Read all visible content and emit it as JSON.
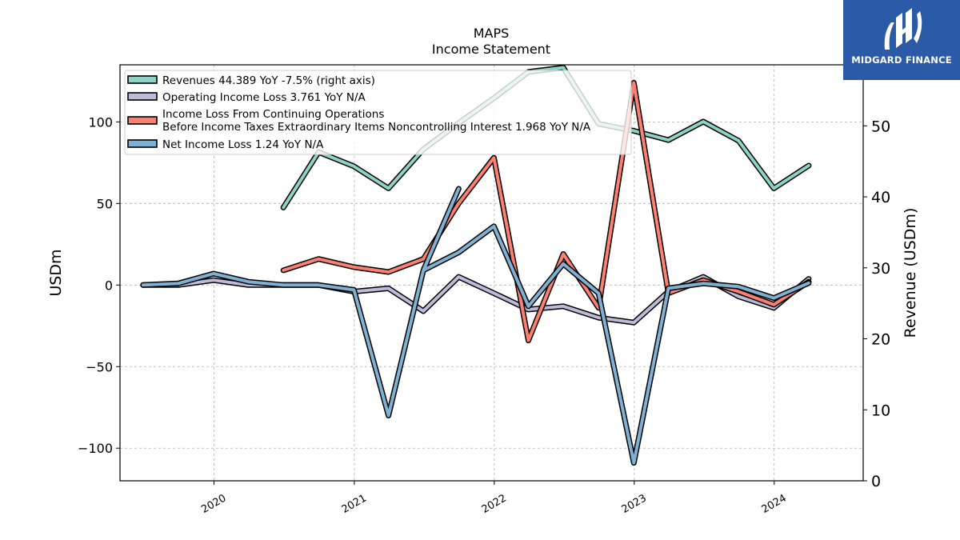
{
  "title": "MAPS",
  "subtitle": "Income Statement",
  "brand": {
    "name": "MIDGARD FINANCE",
    "color": "#2b5aa8"
  },
  "chart_data": {
    "type": "line",
    "ylabel_left": "USDm",
    "ylabel_right": "Revenue (USDm)",
    "ylim_left": [
      -120,
      135
    ],
    "ylim_right": [
      0,
      58.6
    ],
    "yticks_left": [
      -100,
      -50,
      0,
      50,
      100
    ],
    "yticks_left_labels": [
      "−100",
      "−50",
      "0",
      "50",
      "100"
    ],
    "yticks_right": [
      0,
      10,
      20,
      30,
      40,
      50
    ],
    "xticks": [
      "2020",
      "2021",
      "2022",
      "2023",
      "2024"
    ],
    "grid": true,
    "legend_position": "top-left",
    "series": [
      {
        "name": "Revenues  44.389 YoY -7.5% (right axis)",
        "axis": "right",
        "color": "#8dd3c7",
        "x": [
          "2020-06-30",
          "2020-09-30",
          "2020-12-31",
          "2021-03-31",
          "2021-06-30",
          "2021-09-30",
          "2021-12-31",
          "2022-03-31",
          "2022-06-30",
          "2022-09-30",
          "2022-12-31",
          "2023-03-31",
          "2023-06-30",
          "2023-09-30",
          "2023-12-31",
          "2024-03-31"
        ],
        "y": [
          38.5,
          46.3,
          44.3,
          41.2,
          46.7,
          50.4,
          53.9,
          57.6,
          58.2,
          50.3,
          49.3,
          48.0,
          50.6,
          47.9,
          41.2,
          44.4
        ]
      },
      {
        "name": "Operating Income Loss  3.761 YoY N/A",
        "axis": "left",
        "color": "#bebada",
        "x": [
          "2019-06-30",
          "2019-09-30",
          "2019-12-31",
          "2020-03-31",
          "2020-06-30",
          "2020-09-30",
          "2020-12-31",
          "2021-03-31",
          "2021-06-30",
          "2021-09-30",
          "2021-12-31",
          "2022-03-31",
          "2022-06-30",
          "2022-09-30",
          "2022-12-31",
          "2023-03-31",
          "2023-06-30",
          "2023-09-30",
          "2023-12-31",
          "2024-03-31"
        ],
        "y": [
          0,
          0,
          3,
          0,
          0,
          0,
          -4,
          -2,
          -16,
          5,
          -5,
          -15,
          -13,
          -20,
          -23,
          -4,
          5,
          -7,
          -14,
          3.761
        ]
      },
      {
        "name": "Income Loss From Continuing Operations\nBefore Income Taxes Extraordinary Items Noncontrolling Interest  1.968 YoY N/A",
        "axis": "left",
        "color": "#fb8072",
        "x": [
          "2020-06-30",
          "2020-09-30",
          "2020-12-31",
          "2021-03-31",
          "2021-06-30",
          "2021-09-30",
          "2021-12-31",
          "2022-03-31",
          "2022-06-30",
          "2022-09-30",
          "2022-12-31",
          "2023-03-31",
          "2023-06-30",
          "2023-09-30",
          "2023-12-31",
          "2024-03-31"
        ],
        "y": [
          9,
          16,
          11,
          8,
          16,
          50,
          78,
          -34,
          19,
          -14,
          124,
          -5,
          3,
          -4,
          -12,
          1.968
        ]
      },
      {
        "name": "Net Income Loss  1.24 YoY N/A",
        "axis": "left",
        "color": "#80b1d3",
        "x": [
          "2019-06-30",
          "2019-09-30",
          "2019-12-31",
          "2020-03-31",
          "2020-06-30",
          "2020-09-30",
          "2020-12-31",
          "2021-03-31",
          "2021-06-30",
          "2021-09-30",
          "2021-06-30",
          "2021-09-30",
          "2021-12-31",
          "2022-03-31",
          "2022-06-30",
          "2022-09-30",
          "2022-12-31",
          "2023-03-31",
          "2023-06-30",
          "2023-09-30",
          "2023-12-31",
          "2024-03-31"
        ],
        "y": [
          0,
          1,
          7,
          2,
          0,
          0,
          -3,
          -80,
          9,
          59,
          9,
          20,
          36,
          -13,
          13,
          -5,
          -109,
          -2,
          1,
          -1,
          -8,
          1.24
        ]
      }
    ]
  }
}
